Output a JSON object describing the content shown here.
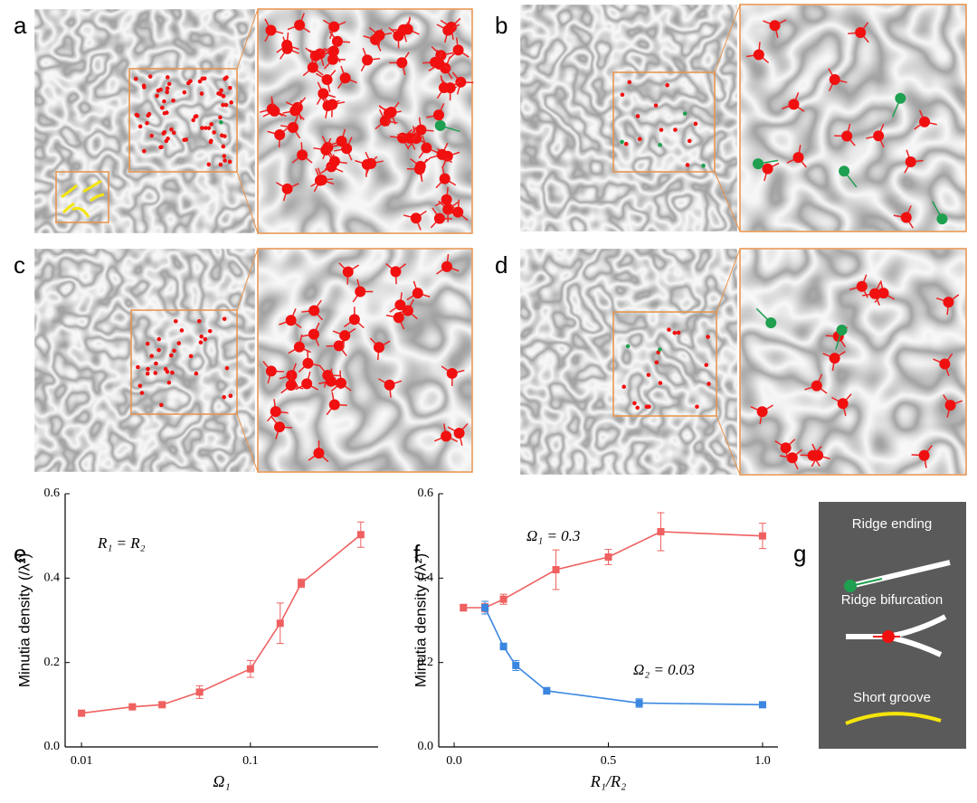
{
  "panel_labels": [
    "a",
    "b",
    "c",
    "d"
  ],
  "chart_data": [
    {
      "type": "line",
      "label": "e",
      "log_x": true,
      "xlabel": "Ω₁",
      "ylabel": "Minutia density (/λ²)",
      "annotations": [
        "R₁ = R₂"
      ],
      "xlim": [
        0.008,
        0.57
      ],
      "xticks": [
        0.01,
        0.1
      ],
      "ylim": [
        0,
        0.6
      ],
      "yticks": [
        {
          "value": 0,
          "label": "0.0"
        },
        0.2,
        0.4,
        0.6
      ],
      "series": [
        {
          "color": "#ef6060",
          "x": [
            0.01,
            0.02,
            0.03,
            0.05,
            0.1,
            0.15,
            0.2,
            0.45
          ],
          "values": [
            0.08,
            0.095,
            0.1,
            0.13,
            0.185,
            0.293,
            0.388,
            0.503
          ],
          "errors": [
            0.005,
            0.005,
            0.005,
            0.015,
            0.02,
            0.048,
            0.01,
            0.03
          ]
        }
      ]
    },
    {
      "type": "line",
      "label": "f",
      "log_x": false,
      "xlabel": "R₁/R₂",
      "ylabel": "Minutia density (/λ²)",
      "annotations": [
        "Ω₁ = 0.3",
        "Ω₂ = 0.03"
      ],
      "xlim": [
        -0.05,
        1.05
      ],
      "xticks": [
        {
          "value": 0,
          "label": "0.0"
        },
        0.5,
        {
          "value": 1,
          "label": "1.0"
        }
      ],
      "ylim": [
        0,
        0.6
      ],
      "yticks": [
        {
          "value": 0,
          "label": "0.0"
        },
        0.2,
        0.4,
        0.6
      ],
      "series": [
        {
          "color": "#ef6060",
          "x": [
            0.03,
            0.1,
            0.16,
            0.33,
            0.5,
            0.67,
            1.0
          ],
          "values": [
            0.33,
            0.33,
            0.35,
            0.42,
            0.45,
            0.51,
            0.5
          ],
          "errors": [
            0.008,
            0.01,
            0.012,
            0.047,
            0.018,
            0.045,
            0.03
          ]
        },
        {
          "color": "#3a86e0",
          "x": [
            0.1,
            0.16,
            0.2,
            0.3,
            0.6,
            1.0
          ],
          "values": [
            0.33,
            0.238,
            0.193,
            0.133,
            0.104,
            0.1
          ],
          "errors": [
            0.015,
            0.008,
            0.012,
            0.008,
            0.01,
            0.005
          ]
        }
      ]
    }
  ],
  "legend": {
    "label": "g",
    "items": [
      "Ridge ending",
      "Ridge bifurcation",
      "Short groove"
    ]
  }
}
